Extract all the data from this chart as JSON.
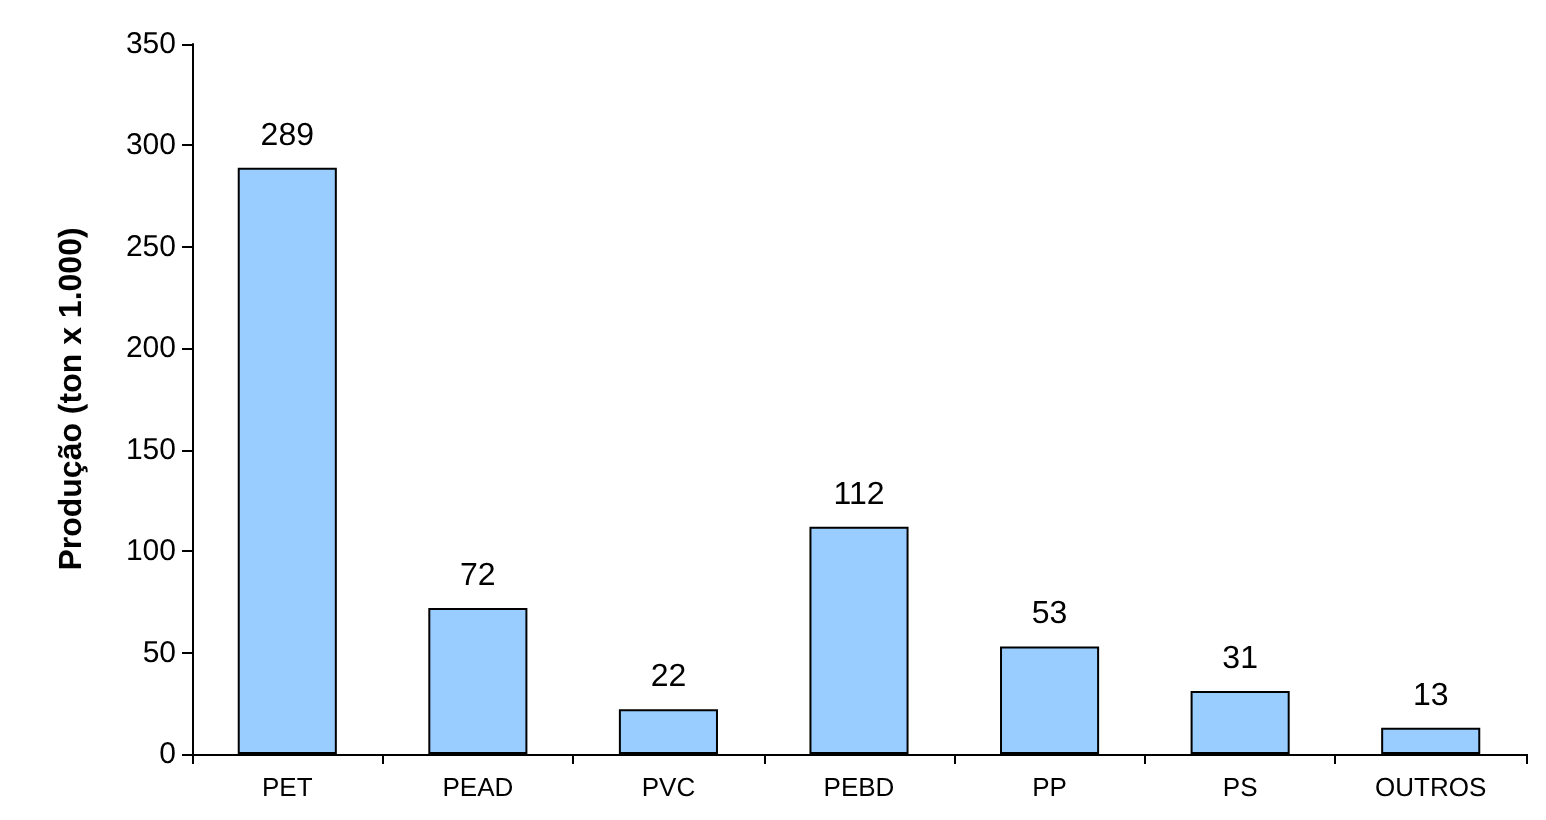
{
  "chart_data": {
    "type": "bar",
    "categories": [
      "PET",
      "PEAD",
      "PVC",
      "PEBD",
      "PP",
      "PS",
      "OUTROS"
    ],
    "values": [
      289,
      72,
      22,
      112,
      53,
      31,
      13
    ],
    "color": "#99ccff",
    "ylabel": "Produção (ton x 1.000)",
    "ylim": [
      0,
      350
    ],
    "yticks": [
      0,
      50,
      100,
      150,
      200,
      250,
      300,
      350
    ],
    "data_labels": true,
    "grid": false
  }
}
